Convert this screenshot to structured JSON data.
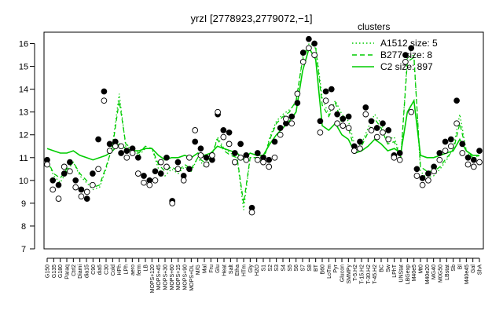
{
  "chart_data": {
    "type": "line",
    "title": "yrzI [2778923,2779072,−1]",
    "xlabel": "",
    "ylabel": "",
    "ylim": [
      7,
      16.5
    ],
    "yticks": [
      7,
      8,
      9,
      10,
      11,
      12,
      13,
      14,
      15,
      16
    ],
    "x_tick_labels": [
      "G150",
      "G135",
      "G180",
      "Paraq",
      "Ctrl2",
      "Diami",
      "dia15",
      "C90",
      "dia5",
      "C30",
      "Cold",
      "HPh",
      "LPh",
      "aero",
      "ferm",
      "LB",
      "MOPS+120",
      "MOPS+45",
      "MOPS+30",
      "MOPS+60",
      "MOPS+15",
      "MOPS+90",
      "MOPS+DL",
      "M/G",
      "Mal",
      "Fru",
      "Glu",
      "Heat",
      "Salt",
      "Etha",
      "HTm",
      "Gly",
      "H2O",
      "S1",
      "S2",
      "S3",
      "S4",
      "S5",
      "S6",
      "S7",
      "S8",
      "BT",
      "B60",
      "LoTm",
      "Pyr",
      "Glucon",
      "SMMPy",
      "T-5.H2",
      "T-15.H2",
      "T-30.H2",
      "T-45.H2",
      "BC",
      "Sw",
      "LPhT",
      "UNStat",
      "LBGexp",
      "M40e5",
      "Mt0",
      "M40e20",
      "MG40",
      "M0G50",
      "LBstat",
      "Sb",
      "Bl",
      "M40e45",
      "Gal",
      "ShA"
    ],
    "x_tick_label_style": "vertical, partially overlapping",
    "legend": {
      "title": "clusters",
      "placement": "top-right",
      "entries": [
        {
          "label": "A1512 size: 5",
          "style": "dotted",
          "color": "#00cc00"
        },
        {
          "label": "B277 size: 8",
          "style": "dashed",
          "color": "#00cc00"
        },
        {
          "label": "C2 size: 897",
          "style": "solid",
          "color": "#00cc00"
        }
      ]
    },
    "series": [
      {
        "style": "dotted",
        "values": [
          10.9,
          10.2,
          9.9,
          10.4,
          10.8,
          10.2,
          9.9,
          9.6,
          9.7,
          10.5,
          11.6,
          13.8,
          11.5,
          11.4,
          11.1,
          11.4,
          11.4,
          10.5,
          10.2,
          10.5,
          10.3,
          10.6,
          10.4,
          11.0,
          10.6,
          10.9,
          11.9,
          11.4,
          11.2,
          11.0,
          8.7,
          11.0,
          11.0,
          10.8,
          11.9,
          12.6,
          12.9,
          13.1,
          13.4,
          15.4,
          16.0,
          15.9,
          13.6,
          12.9,
          13.5,
          12.9,
          12.6,
          11.5,
          11.6,
          12.3,
          12.9,
          12.5,
          11.8,
          11.9,
          11.0,
          15.4,
          15.5,
          10.4,
          10.1,
          10.2,
          10.5,
          10.9,
          11.4,
          12.9,
          11.3,
          10.9,
          11.1
        ]
      },
      {
        "style": "dashed",
        "values": [
          10.9,
          10.3,
          10.1,
          10.5,
          10.8,
          10.3,
          10.0,
          9.7,
          9.8,
          10.6,
          11.5,
          13.5,
          11.6,
          11.4,
          11.2,
          11.5,
          11.4,
          10.7,
          10.4,
          10.6,
          10.4,
          10.7,
          10.5,
          11.0,
          10.8,
          11.0,
          11.8,
          11.3,
          11.1,
          11.0,
          9.0,
          11.0,
          11.0,
          10.9,
          11.8,
          12.5,
          12.8,
          13.0,
          13.5,
          15.3,
          15.9,
          15.8,
          13.3,
          12.8,
          13.4,
          12.5,
          12.3,
          11.3,
          11.5,
          12.1,
          12.7,
          12.3,
          11.6,
          11.7,
          11.0,
          15.2,
          15.4,
          10.6,
          10.4,
          10.4,
          10.6,
          11.0,
          11.3,
          12.5,
          11.3,
          11.0,
          11.1
        ]
      },
      {
        "style": "solid",
        "values": [
          11.4,
          11.3,
          11.2,
          11.2,
          11.3,
          11.1,
          11.0,
          10.9,
          11.0,
          11.1,
          11.3,
          11.6,
          11.4,
          11.3,
          11.3,
          11.4,
          11.4,
          11.1,
          10.9,
          11.0,
          11.0,
          11.1,
          11.0,
          11.2,
          11.1,
          11.2,
          11.5,
          11.4,
          11.3,
          11.2,
          10.9,
          11.2,
          11.1,
          11.1,
          11.6,
          12.0,
          12.3,
          12.6,
          13.0,
          14.8,
          15.8,
          15.3,
          12.4,
          12.2,
          12.5,
          12.0,
          11.8,
          11.2,
          11.3,
          11.5,
          11.8,
          11.6,
          11.3,
          11.4,
          11.2,
          13.0,
          13.5,
          11.1,
          11.0,
          11.0,
          11.1,
          11.2,
          11.3,
          11.8,
          11.3,
          11.1,
          11.1
        ]
      }
    ],
    "points": [
      {
        "x": 0,
        "y": 10.9
      },
      {
        "x": 0,
        "y": 10.7
      },
      {
        "x": 1,
        "y": 10.0
      },
      {
        "x": 1,
        "y": 9.6
      },
      {
        "x": 2,
        "y": 9.8
      },
      {
        "x": 2,
        "y": 9.2
      },
      {
        "x": 3,
        "y": 10.3
      },
      {
        "x": 3,
        "y": 10.6
      },
      {
        "x": 4,
        "y": 10.8
      },
      {
        "x": 4,
        "y": 10.4
      },
      {
        "x": 5,
        "y": 10.0
      },
      {
        "x": 5,
        "y": 9.7
      },
      {
        "x": 6,
        "y": 9.6
      },
      {
        "x": 6,
        "y": 9.3
      },
      {
        "x": 7,
        "y": 9.2
      },
      {
        "x": 7,
        "y": 9.5
      },
      {
        "x": 8,
        "y": 10.3
      },
      {
        "x": 8,
        "y": 9.8
      },
      {
        "x": 9,
        "y": 11.8
      },
      {
        "x": 9,
        "y": 10.5
      },
      {
        "x": 10,
        "y": 13.9
      },
      {
        "x": 10,
        "y": 13.5
      },
      {
        "x": 11,
        "y": 11.6
      },
      {
        "x": 11,
        "y": 11.3
      },
      {
        "x": 12,
        "y": 11.7
      },
      {
        "x": 12,
        "y": 11.5
      },
      {
        "x": 13,
        "y": 11.2
      },
      {
        "x": 13,
        "y": 11.5
      },
      {
        "x": 14,
        "y": 11.3
      },
      {
        "x": 14,
        "y": 11.0
      },
      {
        "x": 15,
        "y": 11.4
      },
      {
        "x": 15,
        "y": 11.2
      },
      {
        "x": 16,
        "y": 11.0
      },
      {
        "x": 16,
        "y": 10.3
      },
      {
        "x": 17,
        "y": 10.2
      },
      {
        "x": 17,
        "y": 9.9
      },
      {
        "x": 18,
        "y": 10.0
      },
      {
        "x": 18,
        "y": 9.8
      },
      {
        "x": 19,
        "y": 10.4
      },
      {
        "x": 19,
        "y": 10.0
      },
      {
        "x": 20,
        "y": 10.3
      },
      {
        "x": 20,
        "y": 10.8
      },
      {
        "x": 21,
        "y": 11.0
      },
      {
        "x": 21,
        "y": 10.6
      },
      {
        "x": 22,
        "y": 9.1
      },
      {
        "x": 22,
        "y": 9.0
      },
      {
        "x": 23,
        "y": 10.8
      },
      {
        "x": 23,
        "y": 10.5
      },
      {
        "x": 24,
        "y": 10.2
      },
      {
        "x": 24,
        "y": 10.0
      },
      {
        "x": 25,
        "y": 10.5
      },
      {
        "x": 25,
        "y": 11.0
      },
      {
        "x": 26,
        "y": 11.7
      },
      {
        "x": 26,
        "y": 12.2
      },
      {
        "x": 27,
        "y": 11.4
      },
      {
        "x": 27,
        "y": 11.1
      },
      {
        "x": 28,
        "y": 11.0
      },
      {
        "x": 28,
        "y": 10.7
      },
      {
        "x": 29,
        "y": 10.9
      },
      {
        "x": 29,
        "y": 11.1
      },
      {
        "x": 30,
        "y": 12.9
      },
      {
        "x": 30,
        "y": 13.0
      },
      {
        "x": 31,
        "y": 12.2
      },
      {
        "x": 31,
        "y": 11.9
      },
      {
        "x": 32,
        "y": 12.1
      },
      {
        "x": 32,
        "y": 11.6
      },
      {
        "x": 33,
        "y": 11.2
      },
      {
        "x": 33,
        "y": 10.8
      },
      {
        "x": 34,
        "y": 11.6
      },
      {
        "x": 34,
        "y": 11.0
      },
      {
        "x": 35,
        "y": 11.1
      },
      {
        "x": 35,
        "y": 10.9
      },
      {
        "x": 36,
        "y": 8.8
      },
      {
        "x": 36,
        "y": 8.6
      },
      {
        "x": 37,
        "y": 11.2
      },
      {
        "x": 37,
        "y": 10.9
      },
      {
        "x": 38,
        "y": 11.0
      },
      {
        "x": 38,
        "y": 10.8
      },
      {
        "x": 39,
        "y": 10.9
      },
      {
        "x": 39,
        "y": 10.6
      },
      {
        "x": 40,
        "y": 11.7
      },
      {
        "x": 40,
        "y": 11.0
      },
      {
        "x": 41,
        "y": 12.3
      },
      {
        "x": 41,
        "y": 12.0
      },
      {
        "x": 42,
        "y": 12.5
      },
      {
        "x": 42,
        "y": 12.7
      },
      {
        "x": 43,
        "y": 12.8
      },
      {
        "x": 43,
        "y": 12.5
      },
      {
        "x": 44,
        "y": 13.4
      },
      {
        "x": 44,
        "y": 13.8
      },
      {
        "x": 45,
        "y": 15.6
      },
      {
        "x": 45,
        "y": 15.2
      },
      {
        "x": 46,
        "y": 16.2
      },
      {
        "x": 46,
        "y": 15.8
      },
      {
        "x": 47,
        "y": 16.0
      },
      {
        "x": 47,
        "y": 15.5
      },
      {
        "x": 48,
        "y": 12.6
      },
      {
        "x": 48,
        "y": 12.1
      },
      {
        "x": 49,
        "y": 13.9
      },
      {
        "x": 49,
        "y": 13.5
      },
      {
        "x": 50,
        "y": 14.0
      },
      {
        "x": 50,
        "y": 13.2
      },
      {
        "x": 51,
        "y": 12.9
      },
      {
        "x": 51,
        "y": 12.5
      },
      {
        "x": 52,
        "y": 12.7
      },
      {
        "x": 52,
        "y": 12.4
      },
      {
        "x": 53,
        "y": 12.8
      },
      {
        "x": 53,
        "y": 12.3
      },
      {
        "x": 54,
        "y": 11.5
      },
      {
        "x": 54,
        "y": 11.3
      },
      {
        "x": 55,
        "y": 11.7
      },
      {
        "x": 55,
        "y": 11.4
      },
      {
        "x": 56,
        "y": 13.2
      },
      {
        "x": 56,
        "y": 12.9
      },
      {
        "x": 57,
        "y": 12.6
      },
      {
        "x": 57,
        "y": 12.2
      },
      {
        "x": 58,
        "y": 12.3
      },
      {
        "x": 58,
        "y": 11.9
      },
      {
        "x": 59,
        "y": 12.5
      },
      {
        "x": 59,
        "y": 12.1
      },
      {
        "x": 60,
        "y": 12.2
      },
      {
        "x": 60,
        "y": 11.8
      },
      {
        "x": 61,
        "y": 11.1
      },
      {
        "x": 61,
        "y": 11.0
      },
      {
        "x": 62,
        "y": 11.2
      },
      {
        "x": 62,
        "y": 10.9
      },
      {
        "x": 63,
        "y": 15.5
      },
      {
        "x": 63,
        "y": 15.2
      },
      {
        "x": 64,
        "y": 15.8
      },
      {
        "x": 64,
        "y": 13.0
      },
      {
        "x": 65,
        "y": 10.5
      },
      {
        "x": 65,
        "y": 10.2
      },
      {
        "x": 66,
        "y": 10.1
      },
      {
        "x": 66,
        "y": 9.8
      },
      {
        "x": 67,
        "y": 10.3
      },
      {
        "x": 67,
        "y": 10.0
      },
      {
        "x": 68,
        "y": 10.6
      },
      {
        "x": 68,
        "y": 10.4
      },
      {
        "x": 69,
        "y": 11.2
      },
      {
        "x": 69,
        "y": 10.9
      },
      {
        "x": 70,
        "y": 11.7
      },
      {
        "x": 70,
        "y": 11.3
      },
      {
        "x": 71,
        "y": 11.8
      },
      {
        "x": 71,
        "y": 11.5
      },
      {
        "x": 72,
        "y": 13.5
      },
      {
        "x": 72,
        "y": 12.5
      },
      {
        "x": 73,
        "y": 11.6
      },
      {
        "x": 73,
        "y": 11.2
      },
      {
        "x": 74,
        "y": 11.0
      },
      {
        "x": 74,
        "y": 10.7
      },
      {
        "x": 75,
        "y": 10.9
      },
      {
        "x": 75,
        "y": 10.6
      },
      {
        "x": 76,
        "y": 11.3
      },
      {
        "x": 76,
        "y": 10.8
      }
    ],
    "point_style": "black filled and open circles",
    "colors": {
      "lines": "#00cc00",
      "points": "#000000"
    }
  }
}
